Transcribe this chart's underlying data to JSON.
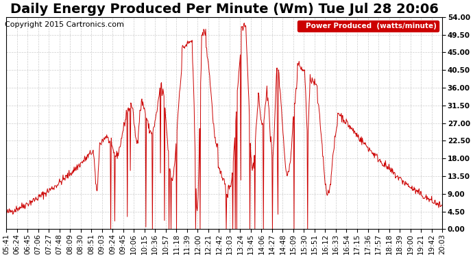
{
  "title": "Daily Energy Produced Per Minute (Wm) Tue Jul 28 20:06",
  "copyright": "Copyright 2015 Cartronics.com",
  "legend_label": "Power Produced  (watts/minute)",
  "legend_bg": "#cc0000",
  "legend_text_color": "#ffffff",
  "line_color": "#cc0000",
  "bg_color": "#ffffff",
  "grid_color": "#cccccc",
  "yticks": [
    0.0,
    4.5,
    9.0,
    13.5,
    18.0,
    22.5,
    27.0,
    31.5,
    36.0,
    40.5,
    45.0,
    49.5,
    54.0
  ],
  "ymin": 0.0,
  "ymax": 54.0,
  "title_fontsize": 14,
  "axis_fontsize": 7.5,
  "copyright_fontsize": 8
}
